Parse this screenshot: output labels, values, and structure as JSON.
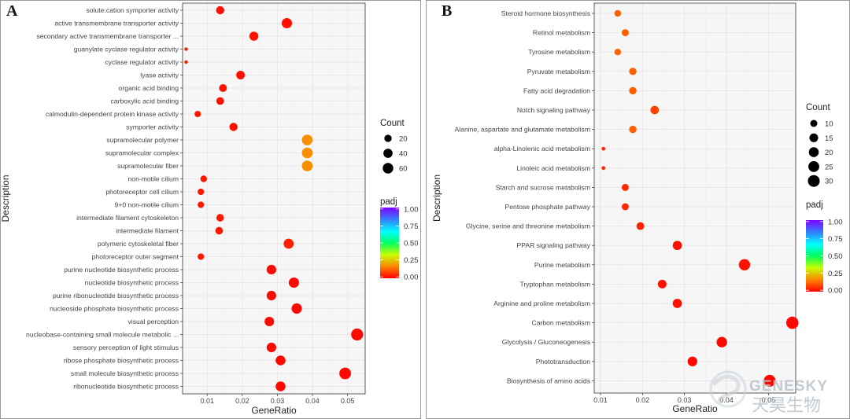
{
  "colors": {
    "padj_scale": [
      "#ff0000",
      "#ff8000",
      "#c8ff00",
      "#00ff60",
      "#00ffff",
      "#3380ff",
      "#8000ff"
    ]
  },
  "watermark": {
    "latin": "GENESKY",
    "cjk": "天昊生物"
  },
  "chart_data": [
    {
      "panel": "A",
      "type": "scatter",
      "xlabel": "GeneRatio",
      "ylabel": "Description",
      "xlim": [
        0.003,
        0.055
      ],
      "xticks": [
        0.01,
        0.02,
        0.03,
        0.04,
        0.05
      ],
      "xtick_labels": [
        "0.01",
        "0.02",
        "0.03",
        "0.04",
        "0.05"
      ],
      "grid": true,
      "legend_position": "right",
      "size_legend": {
        "title": "Count",
        "values": [
          20,
          40,
          60
        ],
        "labels": [
          "20",
          "40",
          "60"
        ]
      },
      "color_legend": {
        "title": "padj",
        "range": [
          0,
          1
        ],
        "ticks": [
          0,
          0.25,
          0.5,
          0.75,
          1.0
        ],
        "tick_labels": [
          "0.00",
          "0.25",
          "0.50",
          "0.75",
          "1.00"
        ]
      },
      "points": [
        {
          "term": "solute:cation symporter activity",
          "x": 0.0137,
          "count": 28,
          "padj": 0.02
        },
        {
          "term": "active transmembrane transporter activity",
          "x": 0.0327,
          "count": 55,
          "padj": 0.02
        },
        {
          "term": "secondary active transmembrane transporter ...",
          "x": 0.0233,
          "count": 38,
          "padj": 0.02
        },
        {
          "term": "guanylate cyclase regulator activity",
          "x": 0.004,
          "count": 3,
          "padj": 0.03
        },
        {
          "term": "cyclase regulator activity",
          "x": 0.004,
          "count": 3,
          "padj": 0.03
        },
        {
          "term": "lyase activity",
          "x": 0.0195,
          "count": 33,
          "padj": 0.02
        },
        {
          "term": "organic acid binding",
          "x": 0.0145,
          "count": 24,
          "padj": 0.02
        },
        {
          "term": "carboxylic acid binding",
          "x": 0.0137,
          "count": 23,
          "padj": 0.02
        },
        {
          "term": "calmodulin-dependent protein kinase activity",
          "x": 0.0073,
          "count": 12,
          "padj": 0.03
        },
        {
          "term": "symporter activity",
          "x": 0.0175,
          "count": 28,
          "padj": 0.02
        },
        {
          "term": "supramolecular polymer",
          "x": 0.0385,
          "count": 62,
          "padj": 0.18
        },
        {
          "term": "supramolecular complex",
          "x": 0.0385,
          "count": 62,
          "padj": 0.18
        },
        {
          "term": "supramolecular fiber",
          "x": 0.0385,
          "count": 62,
          "padj": 0.18
        },
        {
          "term": "non-motile cilium",
          "x": 0.009,
          "count": 14,
          "padj": 0.03
        },
        {
          "term": "photoreceptor cell cilium",
          "x": 0.0082,
          "count": 13,
          "padj": 0.03
        },
        {
          "term": "9+0 non-motile cilium",
          "x": 0.0082,
          "count": 13,
          "padj": 0.03
        },
        {
          "term": "intermediate filament cytoskeleton",
          "x": 0.0137,
          "count": 22,
          "padj": 0.03
        },
        {
          "term": "intermediate filament",
          "x": 0.0134,
          "count": 22,
          "padj": 0.03
        },
        {
          "term": "polymeric cytoskeletal fiber",
          "x": 0.0332,
          "count": 52,
          "padj": 0.04
        },
        {
          "term": "photoreceptor outer segment",
          "x": 0.0082,
          "count": 13,
          "padj": 0.03
        },
        {
          "term": "purine nucleotide biosynthetic process",
          "x": 0.0283,
          "count": 45,
          "padj": 0.01
        },
        {
          "term": "nucleotide biosynthetic process",
          "x": 0.0347,
          "count": 55,
          "padj": 0.01
        },
        {
          "term": "purine ribonucleotide biosynthetic process",
          "x": 0.0283,
          "count": 45,
          "padj": 0.01
        },
        {
          "term": "nucleoside phosphate biosynthetic process",
          "x": 0.0355,
          "count": 56,
          "padj": 0.01
        },
        {
          "term": "visual perception",
          "x": 0.0277,
          "count": 44,
          "padj": 0.01
        },
        {
          "term": "nucleobase-containing small molecule metabolic ...",
          "x": 0.0527,
          "count": 84,
          "padj": 0.01
        },
        {
          "term": "sensory perception of light stimulus",
          "x": 0.0283,
          "count": 45,
          "padj": 0.01
        },
        {
          "term": "ribose phosphate biosynthetic process",
          "x": 0.0309,
          "count": 49,
          "padj": 0.01
        },
        {
          "term": "small molecule biosynthetic process",
          "x": 0.0493,
          "count": 78,
          "padj": 0.01
        },
        {
          "term": "ribonucleotide biosynthetic process",
          "x": 0.0309,
          "count": 49,
          "padj": 0.01
        }
      ]
    },
    {
      "panel": "B",
      "type": "scatter",
      "xlabel": "GeneRatio",
      "ylabel": "Description",
      "xlim": [
        0.0085,
        0.0565
      ],
      "xticks": [
        0.01,
        0.02,
        0.03,
        0.04,
        0.05
      ],
      "xtick_labels": [
        "0.01",
        "0.02",
        "0.03",
        "0.04",
        "0.05"
      ],
      "grid": true,
      "legend_position": "right",
      "size_legend": {
        "title": "Count",
        "values": [
          10,
          15,
          20,
          25,
          30
        ],
        "labels": [
          "10",
          "15",
          "20",
          "25",
          "30"
        ]
      },
      "color_legend": {
        "title": "padj",
        "range": [
          0,
          1
        ],
        "ticks": [
          0,
          0.25,
          0.5,
          0.75,
          1.0
        ],
        "tick_labels": [
          "0.00",
          "0.25",
          "0.50",
          "0.75",
          "1.00"
        ]
      },
      "points": [
        {
          "term": "Steroid hormone biosynthesis",
          "x": 0.0141,
          "count": 9,
          "padj": 0.12
        },
        {
          "term": "Retinol metabolism",
          "x": 0.0159,
          "count": 10,
          "padj": 0.12
        },
        {
          "term": "Tyrosine metabolism",
          "x": 0.0141,
          "count": 9,
          "padj": 0.12
        },
        {
          "term": "Pyruvate metabolism",
          "x": 0.0177,
          "count": 11,
          "padj": 0.12
        },
        {
          "term": "Fatty acid degradation",
          "x": 0.0177,
          "count": 11,
          "padj": 0.12
        },
        {
          "term": "Notch signaling pathway",
          "x": 0.0229,
          "count": 14,
          "padj": 0.08
        },
        {
          "term": "Alanine, aspartate and glutamate metabolism",
          "x": 0.0177,
          "count": 11,
          "padj": 0.12
        },
        {
          "term": "alpha-Linolenic acid metabolism",
          "x": 0.0107,
          "count": 6,
          "padj": 0.05
        },
        {
          "term": "Linoleic acid metabolism",
          "x": 0.0107,
          "count": 6,
          "padj": 0.05
        },
        {
          "term": "Starch and sucrose metabolism",
          "x": 0.0159,
          "count": 10,
          "padj": 0.05
        },
        {
          "term": "Pentose phosphate pathway",
          "x": 0.0159,
          "count": 10,
          "padj": 0.05
        },
        {
          "term": "Glycine, serine and threonine metabolism",
          "x": 0.0195,
          "count": 12,
          "padj": 0.04
        },
        {
          "term": "PPAR signaling pathway",
          "x": 0.0283,
          "count": 17,
          "padj": 0.02
        },
        {
          "term": "Purine metabolism",
          "x": 0.0443,
          "count": 27,
          "padj": 0.02
        },
        {
          "term": "Tryptophan metabolism",
          "x": 0.0247,
          "count": 15,
          "padj": 0.02
        },
        {
          "term": "Arginine and proline metabolism",
          "x": 0.0283,
          "count": 17,
          "padj": 0.02
        },
        {
          "term": "Carbon metabolism",
          "x": 0.0557,
          "count": 33,
          "padj": 0.01
        },
        {
          "term": "Glycolysis / Gluconeogenesis",
          "x": 0.0389,
          "count": 23,
          "padj": 0.01
        },
        {
          "term": "Phototransduction",
          "x": 0.0319,
          "count": 19,
          "padj": 0.01
        },
        {
          "term": "Biosynthesis of amino acids",
          "x": 0.0503,
          "count": 30,
          "padj": 0.01
        }
      ]
    }
  ]
}
